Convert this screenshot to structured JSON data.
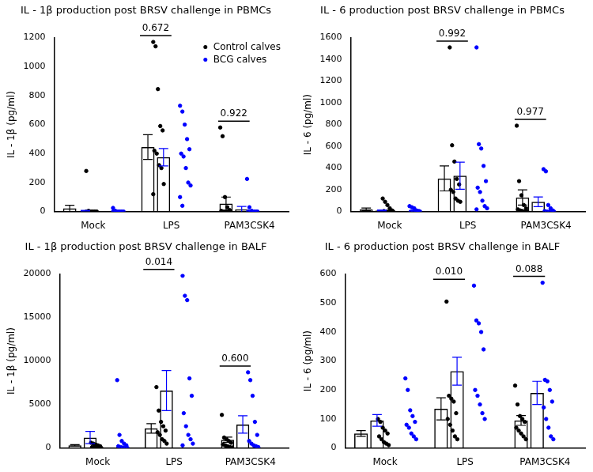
{
  "chart_data": [
    {
      "type": "bar",
      "title": "IL - 1β production post BRSV challenge in PBMCs",
      "y_label": "IL - 1β (pg/ml)",
      "categories": [
        "Mock",
        "LPS",
        "PAM3CSK4"
      ],
      "series": [
        {
          "name": "Control calves",
          "color": "#000000",
          "values": [
            22,
            445,
            55
          ],
          "errors": [
            22,
            85,
            45
          ],
          "points": [
            [
              280,
              5,
              0,
              0,
              0,
              0,
              0,
              0,
              0,
              0,
              0
            ],
            [
              1170,
              1140,
              845,
              590,
              560,
              420,
              400,
              320,
              300,
              190,
              120
            ],
            [
              580,
              520,
              100,
              30,
              10,
              5,
              0,
              0,
              0,
              0
            ]
          ]
        },
        {
          "name": "BCG calves",
          "color": "#0000ff",
          "values": [
            5,
            375,
            15
          ],
          "errors": [
            3,
            60,
            20
          ],
          "points": [
            [
              25,
              5,
              0,
              0,
              0,
              0,
              0,
              0,
              0,
              0,
              0
            ],
            [
              730,
              690,
              600,
              500,
              430,
              400,
              380,
              300,
              200,
              180,
              100,
              40
            ],
            [
              225,
              30,
              5,
              0,
              0,
              0,
              0,
              0,
              0,
              0
            ]
          ]
        }
      ],
      "annotations": [
        {
          "category": "LPS",
          "text": "0.672"
        },
        {
          "category": "PAM3CSK4",
          "text": "0.922"
        }
      ],
      "ylim": [
        0,
        1200
      ],
      "yticks": [
        0,
        200,
        400,
        600,
        800,
        1000,
        1200
      ],
      "grid": false,
      "legend": "top right"
    },
    {
      "type": "bar",
      "title": "IL - 6 production post BRSV challenge in PBMCs",
      "y_label": "IL - 6 (pg/ml)",
      "categories": [
        "Mock",
        "LPS",
        "PAM3CSK4"
      ],
      "series": [
        {
          "name": "Control calves",
          "color": "#000000",
          "values": [
            20,
            305,
            130
          ],
          "errors": [
            12,
            115,
            70
          ],
          "points": [
            [
              120,
              90,
              60,
              30,
              10,
              5,
              0,
              0,
              0,
              0
            ],
            [
              1510,
              610,
              460,
              300,
              250,
              200,
              180,
              120,
              100,
              90
            ],
            [
              790,
              280,
              150,
              60,
              30,
              20,
              10,
              5,
              0,
              0
            ]
          ]
        },
        {
          "name": "BCG calves",
          "color": "#0000ff",
          "values": [
            10,
            330,
            90
          ],
          "errors": [
            5,
            125,
            45
          ],
          "points": [
            [
              50,
              40,
              30,
              10,
              5,
              0,
              0,
              0,
              0,
              0
            ],
            [
              1510,
              620,
              580,
              420,
              280,
              220,
              180,
              100,
              50,
              30,
              20
            ],
            [
              390,
              370,
              60,
              30,
              10,
              5,
              0,
              0,
              0,
              0
            ]
          ]
        }
      ],
      "annotations": [
        {
          "category": "LPS",
          "text": "0.992"
        },
        {
          "category": "PAM3CSK4",
          "text": "0.977"
        }
      ],
      "ylim": [
        0,
        1600
      ],
      "yticks": [
        0,
        200,
        400,
        600,
        800,
        1000,
        1200,
        1400,
        1600
      ],
      "grid": false
    },
    {
      "type": "bar",
      "title": "IL - 1β production post BRSV challenge in BALF",
      "y_label": "IL - 1β (pg/ml)",
      "categories": [
        "Mock",
        "LPS",
        "PAM3CSK4"
      ],
      "series": [
        {
          "name": "Control calves",
          "color": "#000000",
          "values": [
            300,
            2250,
            950
          ],
          "errors": [
            80,
            550,
            300
          ],
          "points": [
            [
              600,
              500,
              400,
              300,
              200,
              100,
              100,
              50,
              50,
              0
            ],
            [
              7000,
              4300,
              3000,
              2500,
              2000,
              1800,
              1500,
              1000,
              800,
              500
            ],
            [
              3800,
              1200,
              1000,
              800,
              600,
              400,
              300,
              200,
              100,
              50
            ]
          ]
        },
        {
          "name": "BCG calves",
          "color": "#0000ff",
          "values": [
            1200,
            6600,
            2700
          ],
          "errors": [
            700,
            2300,
            1000
          ],
          "points": [
            [
              7800,
              1500,
              800,
              500,
              300,
              200,
              100,
              50,
              0,
              0
            ],
            [
              19800,
              17500,
              17000,
              8000,
              6000,
              4000,
              2500,
              1500,
              1000,
              500,
              300
            ],
            [
              8700,
              7800,
              6000,
              3000,
              1500,
              800,
              500,
              300,
              200,
              100
            ]
          ]
        }
      ],
      "annotations": [
        {
          "category": "LPS",
          "text": "0.014"
        },
        {
          "category": "PAM3CSK4",
          "text": "0.600"
        }
      ],
      "ylim": [
        0,
        20000
      ],
      "yticks": [
        0,
        5000,
        10000,
        15000,
        20000
      ],
      "grid": false
    },
    {
      "type": "bar",
      "title": "IL - 6 production post BRSV challenge in BALF",
      "y_label": "IL - 6 (pg/ml)",
      "categories": [
        "Mock",
        "LPS",
        "PAM3CSK4"
      ],
      "series": [
        {
          "name": "Control calves",
          "color": "#000000",
          "values": [
            50,
            135,
            95
          ],
          "errors": [
            10,
            38,
            17
          ],
          "points": [
            [
              100,
              90,
              70,
              60,
              50,
              40,
              30,
              20,
              15,
              10
            ],
            [
              505,
              180,
              170,
              160,
              120,
              100,
              80,
              60,
              40,
              30
            ],
            [
              215,
              150,
              110,
              100,
              90,
              70,
              60,
              50,
              40,
              30
            ]
          ]
        },
        {
          "name": "BCG calves",
          "color": "#0000ff",
          "values": [
            95,
            265,
            190
          ],
          "errors": [
            20,
            48,
            40
          ],
          "points": [
            [
              240,
              200,
              130,
              110,
              90,
              80,
              70,
              50,
              40,
              30
            ],
            [
              560,
              440,
              430,
              400,
              340,
              200,
              180,
              150,
              120,
              100
            ],
            [
              570,
              235,
              230,
              200,
              160,
              140,
              100,
              70,
              40,
              30
            ]
          ]
        }
      ],
      "annotations": [
        {
          "category": "LPS",
          "text": "0.010"
        },
        {
          "category": "PAM3CSK4",
          "text": "0.088"
        }
      ],
      "ylim": [
        0,
        600
      ],
      "yticks": [
        0,
        100,
        200,
        300,
        400,
        500,
        600
      ],
      "grid": false
    }
  ]
}
